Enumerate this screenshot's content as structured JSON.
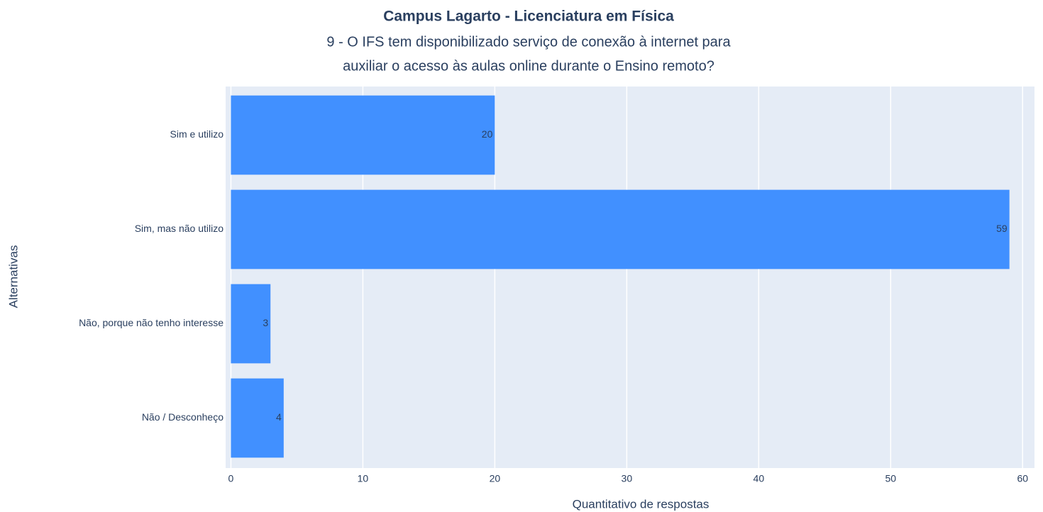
{
  "chart_data": {
    "type": "hbar",
    "title": "Campus Lagarto - Licenciatura em Física",
    "subtitle": [
      "9 - O IFS tem disponibilizado serviço de conexão à internet para",
      "auxiliar o acesso às aulas online durante o Ensino remoto?"
    ],
    "categories": [
      "Sim e utilizo",
      "Sim, mas não utilizo",
      "Não, porque não tenho interesse",
      "Não / Desconheço"
    ],
    "values": [
      20,
      59,
      3,
      4
    ],
    "color": "#4190ff",
    "xlim": [
      -0.4,
      60.9
    ],
    "xticks": [
      0,
      10,
      20,
      30,
      40,
      50,
      60
    ],
    "xlabel": "Quantitativo de respostas",
    "ylabel": "Alternativas",
    "grid": true
  }
}
